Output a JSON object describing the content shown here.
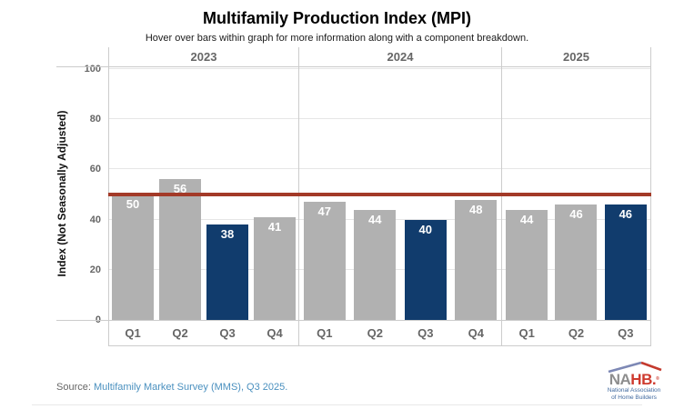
{
  "header": {
    "title": "Multifamily Production Index (MPI)",
    "subtitle": "Hover over bars within graph for more information along with a component breakdown."
  },
  "chart_data": {
    "type": "bar",
    "title": "Multifamily Production Index (MPI)",
    "ylabel": "Index (Not Seasonally Adjusted)",
    "xlabel": "",
    "ylim": [
      0,
      100
    ],
    "yticks": [
      0,
      20,
      40,
      60,
      80,
      100
    ],
    "grid": true,
    "legend": "none",
    "reference_line": {
      "value": 50,
      "color": "#a33a28"
    },
    "colors": {
      "bar_default": "#b1b1b1",
      "bar_highlight": "#113c6d",
      "value_label": "#ffffff"
    },
    "groups": [
      {
        "year": "2023",
        "bars": [
          {
            "label": "Q1",
            "value": 50,
            "highlight": false
          },
          {
            "label": "Q2",
            "value": 56,
            "highlight": false
          },
          {
            "label": "Q3",
            "value": 38,
            "highlight": true
          },
          {
            "label": "Q4",
            "value": 41,
            "highlight": false
          }
        ]
      },
      {
        "year": "2024",
        "bars": [
          {
            "label": "Q1",
            "value": 47,
            "highlight": false
          },
          {
            "label": "Q2",
            "value": 44,
            "highlight": false
          },
          {
            "label": "Q3",
            "value": 40,
            "highlight": true
          },
          {
            "label": "Q4",
            "value": 48,
            "highlight": false
          }
        ]
      },
      {
        "year": "2025",
        "bars": [
          {
            "label": "Q1",
            "value": 44,
            "highlight": false
          },
          {
            "label": "Q2",
            "value": 46,
            "highlight": false
          },
          {
            "label": "Q3",
            "value": 46,
            "highlight": true
          }
        ]
      }
    ]
  },
  "footer": {
    "source_prefix": "Source:",
    "source_link": "Multifamily Market Survey (MMS), Q3 2025."
  },
  "logo": {
    "na": "NA",
    "hb": "HB.",
    "reg": "®",
    "tagline_line1": "National Association",
    "tagline_line2": "of Home Builders"
  }
}
